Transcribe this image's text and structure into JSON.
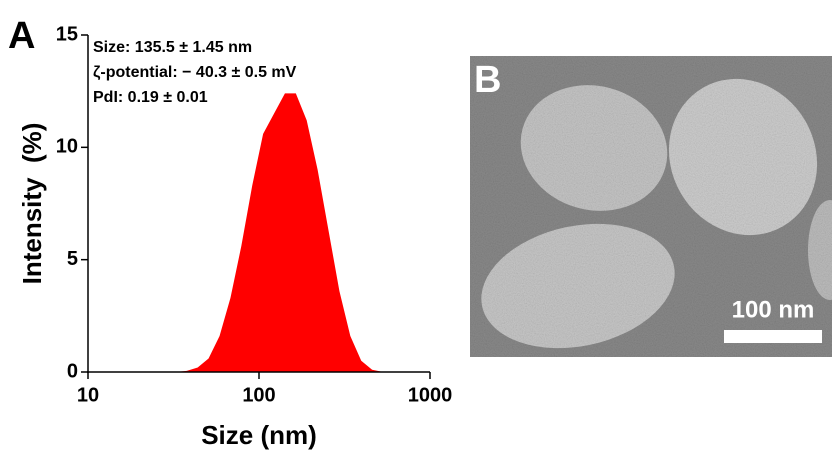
{
  "chart_data": {
    "type": "area",
    "panel_label": "A",
    "x": [
      24.4,
      28.2,
      32.7,
      37.8,
      43.8,
      50.7,
      58.8,
      68.1,
      78.8,
      91.3,
      105.7,
      122.4,
      141.8,
      164.2,
      190.1,
      220.2,
      255,
      295.3,
      342,
      396.1,
      458.7,
      531.2,
      615.1
    ],
    "values": [
      0,
      0,
      0,
      0.05,
      0.2,
      0.6,
      1.6,
      3.3,
      5.6,
      8.3,
      10.6,
      11.5,
      12.4,
      12.4,
      11.2,
      9.0,
      6.3,
      3.6,
      1.6,
      0.5,
      0.1,
      0,
      0
    ],
    "color": "#ff0000",
    "xlabel": "Size  (nm)",
    "ylabel": "Intensity  (%)",
    "xscale": "log",
    "xlim": [
      10,
      1000
    ],
    "xticks": [
      10,
      100,
      1000
    ],
    "ylim": [
      0,
      15
    ],
    "yticks": [
      0,
      5,
      10,
      15
    ],
    "annotations": [
      "Size: 135.5 ± 1.45 nm",
      "ζ-potential: − 40.3 ± 0.5 mV",
      "PdI: 0.19 ± 0.01"
    ]
  },
  "image": {
    "panel_label": "B",
    "scale_bar": "100 nm"
  }
}
